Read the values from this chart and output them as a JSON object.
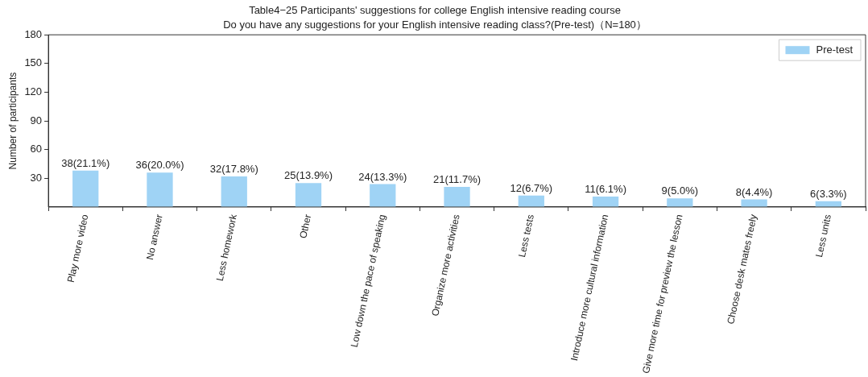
{
  "chart_data": {
    "type": "bar",
    "title": "Table4−25 Participants' suggestions for college English intensive reading course",
    "subtitle": "Do you have any suggestions for your English intensive reading class?(Pre-test)（N=180）",
    "ylabel": "Number of participants",
    "categories": [
      "Play more video",
      "No answer",
      "Less homework",
      "Other",
      "Low down the pace of speaking",
      "Organize more activities",
      "Less tests",
      "Introduce more cultural information",
      "Give more time for preview the lesson",
      "Choose desk mates freely",
      "Less units"
    ],
    "series": [
      {
        "name": "Pre-test",
        "color": "#9fd3f5",
        "values": [
          38,
          36,
          32,
          25,
          24,
          21,
          12,
          11,
          9,
          8,
          6
        ],
        "value_labels": [
          "38(21.1%)",
          "36(20.0%)",
          "32(17.8%)",
          "25(13.9%)",
          "24(13.3%)",
          "21(11.7%)",
          "12(6.7%)",
          "11(6.1%)",
          "9(5.0%)",
          "8(4.4%)",
          "6(3.3%)"
        ]
      }
    ],
    "ylim": [
      0,
      180
    ],
    "yticks": [
      30,
      60,
      90,
      120,
      150,
      180
    ],
    "grid": false,
    "legend": "top right"
  }
}
